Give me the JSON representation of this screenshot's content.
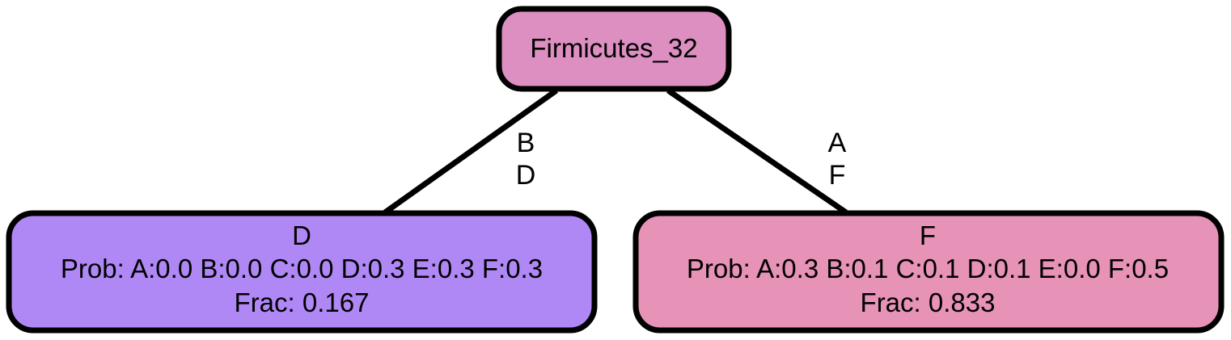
{
  "diagram": {
    "root": {
      "label": "Firmicutes_32",
      "color": "#dd8fc2"
    },
    "children": [
      {
        "edge_label_lines": [
          "B",
          "D"
        ],
        "title": "D",
        "prob": "Prob: A:0.0 B:0.0 C:0.0 D:0.3 E:0.3 F:0.3",
        "frac": "Frac: 0.167",
        "color": "#b088f6"
      },
      {
        "edge_label_lines": [
          "A",
          "F"
        ],
        "title": "F",
        "prob": "Prob: A:0.3 B:0.1 C:0.1 D:0.1 E:0.0 F:0.5",
        "frac": "Frac: 0.833",
        "color": "#e792b7"
      }
    ],
    "stroke_color": "#000000"
  }
}
